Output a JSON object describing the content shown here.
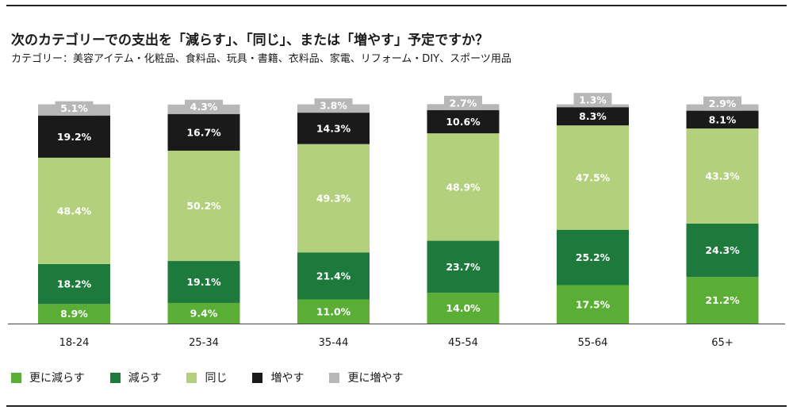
{
  "title": "次のカテゴリーでの支出を「減らす」、「同じ」、または「増やす」予定ですか？",
  "subtitle": "カテゴリー：美容アイテム・化粧品、食料品、玩具・書籍、衣料品、家電、リフォーム・DIY、スポーツ用品",
  "colors": {
    "decrease_more": "#5aae36",
    "decrease": "#1e7a3c",
    "same": "#b3d17d",
    "increase": "#1a1a1a",
    "increase_more": "#b7b7b7"
  },
  "chart_data": {
    "type": "bar",
    "stacked": true,
    "categories": [
      "18-24",
      "25-34",
      "35-44",
      "45-54",
      "55-64",
      "65+"
    ],
    "series": [
      {
        "name": "更に減らす",
        "key": "decrease_more",
        "values": [
          8.9,
          9.4,
          11.0,
          14.0,
          17.5,
          21.2
        ],
        "labels": [
          "8.9%",
          "9.4%",
          "11.0%",
          "14.0%",
          "17.5%",
          "21.2%"
        ]
      },
      {
        "name": "減らす",
        "key": "decrease",
        "values": [
          18.2,
          19.1,
          21.4,
          23.7,
          25.2,
          24.3
        ],
        "labels": [
          "18.2%",
          "19.1%",
          "21.4%",
          "23.7%",
          "25.2%",
          "24.3%"
        ]
      },
      {
        "name": "同じ",
        "key": "same",
        "values": [
          48.4,
          50.2,
          49.3,
          48.9,
          47.5,
          43.3
        ],
        "labels": [
          "48.4%",
          "50.2%",
          "49.3%",
          "48.9%",
          "47.5%",
          "43.3%"
        ]
      },
      {
        "name": "増やす",
        "key": "increase",
        "values": [
          19.2,
          16.7,
          14.3,
          10.6,
          8.3,
          8.1
        ],
        "labels": [
          "19.2%",
          "16.7%",
          "14.3%",
          "10.6%",
          "8.3%",
          "8.1%"
        ]
      },
      {
        "name": "更に増やす",
        "key": "increase_more",
        "values": [
          5.1,
          4.3,
          3.8,
          2.7,
          1.3,
          2.9
        ],
        "labels": [
          "5.1%",
          "4.3%",
          "3.8%",
          "2.7%",
          "1.3%",
          "2.9%"
        ]
      }
    ],
    "ylim": [
      0,
      100
    ],
    "legend_position": "bottom-left",
    "grid": false
  }
}
